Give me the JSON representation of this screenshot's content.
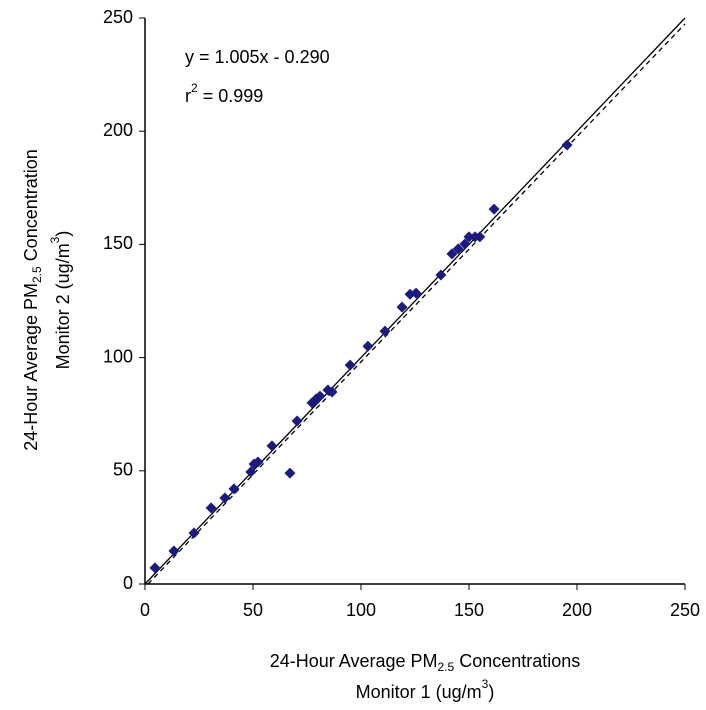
{
  "chart_data": {
    "type": "scatter",
    "annotation": {
      "equation": "y = 1.005x - 0.290",
      "r_base": "r",
      "r_sup": "2",
      "r_rest": " = 0.999"
    },
    "xlabel": {
      "line1": {
        "text": "24-Hour Average PM",
        "sub": "2.5",
        "rest": " Concentrations"
      },
      "line2": {
        "text": "Monitor 1 (ug/m",
        "sup": "3",
        "rest": ")"
      }
    },
    "ylabel": {
      "line1": {
        "text": "24-Hour Average PM",
        "sub": "2.5",
        "rest": " Concentration"
      },
      "line2": {
        "text": "Monitor 2 (ug/m",
        "sup": "3",
        "rest": ")"
      }
    },
    "x": [
      4.6,
      13.4,
      22.7,
      30.6,
      37,
      41.2,
      49,
      50.5,
      52.3,
      58.8,
      70.4,
      77.3,
      79.2,
      81,
      84.7,
      86.6,
      67.1,
      95,
      103.2,
      111.1,
      119,
      122.7,
      125.5,
      137,
      142.1,
      145,
      148.1,
      150,
      152.8,
      155,
      161.6,
      195.4
    ],
    "values": [
      7.1,
      14.6,
      22.5,
      33.6,
      38,
      42,
      49.5,
      53,
      53.9,
      61,
      72,
      80,
      81.7,
      83,
      85.7,
      84.8,
      49,
      96.7,
      105,
      111.7,
      122.3,
      128,
      128.5,
      136.5,
      145.8,
      148,
      150.2,
      153.3,
      153.3,
      153.3,
      165.6,
      193.9
    ],
    "color": "#1a1a80",
    "xlim": [
      0,
      250
    ],
    "xticks": [
      0,
      50,
      100,
      150,
      200,
      250
    ],
    "ylim": [
      0,
      250
    ],
    "yticks": [
      0,
      50,
      100,
      150,
      200,
      250
    ]
  }
}
